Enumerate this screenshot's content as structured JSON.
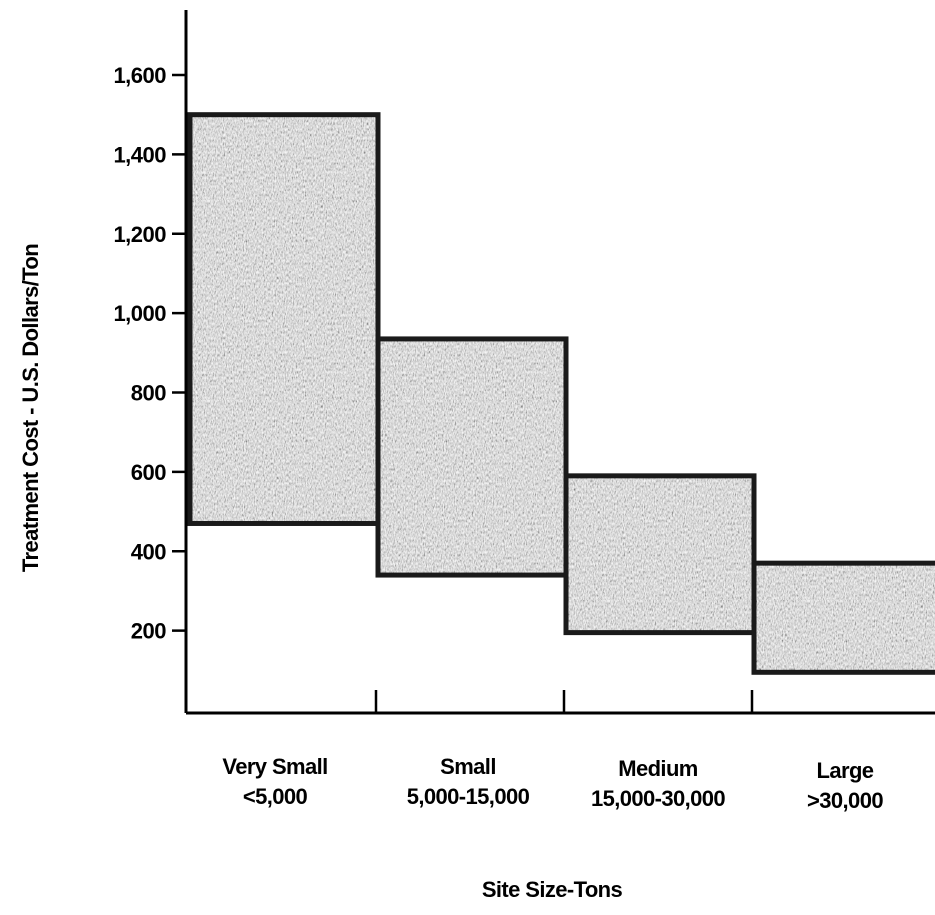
{
  "chart_data": {
    "type": "bar",
    "subtype": "floating-range",
    "xlabel": "Site Size-Tons",
    "ylabel": "Treatment Cost - U.S. Dollars/Ton",
    "ylim": [
      0,
      1600
    ],
    "yticks": [
      200,
      400,
      600,
      800,
      1000,
      1200,
      1400,
      1600
    ],
    "ytick_labels": [
      "200",
      "400",
      "600",
      "800",
      "1,000",
      "1,200",
      "1,400",
      "1,600"
    ],
    "categories": [
      {
        "line1": "Very Small",
        "line2": "<5,000"
      },
      {
        "line1": "Small",
        "line2": "5,000-15,000"
      },
      {
        "line1": "Medium",
        "line2": "15,000-30,000"
      },
      {
        "line1": "Large",
        "line2": ">30,000"
      }
    ],
    "ranges": [
      {
        "low": 470,
        "high": 1500
      },
      {
        "low": 340,
        "high": 935
      },
      {
        "low": 195,
        "high": 590
      },
      {
        "low": 95,
        "high": 370
      }
    ],
    "colors": {
      "fill": "#8a8a8a",
      "edge": "#1a1a1a"
    },
    "grid": false,
    "legend": "none"
  }
}
